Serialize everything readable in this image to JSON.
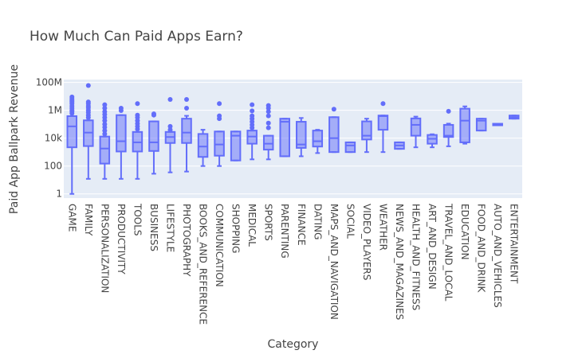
{
  "chart_data": {
    "type": "box",
    "title": "How Much Can Paid Apps Earn?",
    "xlabel": "Category",
    "ylabel": "Paid App Ballpark Revenue",
    "yscale": "log",
    "ylim": [
      0.5,
      160000000
    ],
    "yticks": [
      {
        "value": 1,
        "label": "1"
      },
      {
        "value": 100,
        "label": "100"
      },
      {
        "value": 10000,
        "label": "10k"
      },
      {
        "value": 1000000,
        "label": "1M"
      },
      {
        "value": 100000000,
        "label": "100M"
      }
    ],
    "color": "#636efa",
    "background": "#e5ecf6",
    "categories": [
      {
        "name": "GAME",
        "min": 1,
        "q1": 2200,
        "median": 70000,
        "q3": 380000,
        "max": 380000,
        "outliers": [
          600000,
          800000,
          1000000,
          1400000,
          2000000,
          3000000,
          4000000,
          5000000,
          6500000,
          9000000
        ]
      },
      {
        "name": "FAMILY",
        "min": 12,
        "q1": 2700,
        "median": 25000,
        "q3": 190000,
        "max": 190000,
        "outliers": [
          300000,
          450000,
          700000,
          1000000,
          1500000,
          2000000,
          3000000,
          4000000,
          60000000
        ]
      },
      {
        "name": "PERSONALIZATION",
        "min": 12,
        "q1": 150,
        "median": 1800,
        "q3": 13000,
        "max": 13000,
        "outliers": [
          20000,
          35000,
          60000,
          100000,
          180000,
          300000,
          500000,
          800000,
          1400000,
          2500000
        ]
      },
      {
        "name": "PRODUCTIVITY",
        "min": 12,
        "q1": 1100,
        "median": 6000,
        "q3": 450000,
        "max": 450000,
        "outliers": [
          950000,
          1400000
        ]
      },
      {
        "name": "TOOLS",
        "min": 12,
        "q1": 1100,
        "median": 5000,
        "q3": 28000,
        "max": 28000,
        "outliers": [
          45000,
          70000,
          110000,
          180000,
          300000,
          450000,
          3000000
        ]
      },
      {
        "name": "BUSINESS",
        "min": 28,
        "q1": 1200,
        "median": 5000,
        "q3": 160000,
        "max": 160000,
        "outliers": [
          450000,
          550000
        ]
      },
      {
        "name": "LIFESTYLE",
        "min": 35,
        "q1": 4500,
        "median": 12000,
        "q3": 28000,
        "max": 28000,
        "outliers": [
          40000,
          70000,
          6000000
        ]
      },
      {
        "name": "PHOTOGRAPHY",
        "min": 40,
        "q1": 4500,
        "median": 25000,
        "q3": 250000,
        "max": 400000,
        "outliers": [
          1400000,
          6000000
        ]
      },
      {
        "name": "BOOKS_AND_REFERENCE",
        "min": 100,
        "q1": 450,
        "median": 2500,
        "q3": 20000,
        "max": 40000,
        "outliers": []
      },
      {
        "name": "COMMUNICATION",
        "min": 100,
        "q1": 550,
        "median": 3500,
        "q3": 30000,
        "max": 30000,
        "outliers": [
          250000,
          400000,
          3000000
        ]
      },
      {
        "name": "SHOPPING",
        "min": 250,
        "q1": 250,
        "median": 15000,
        "q3": 30000,
        "max": 30000,
        "outliers": []
      },
      {
        "name": "MEDICAL",
        "min": 300,
        "q1": 4000,
        "median": 13000,
        "q3": 35000,
        "max": 35000,
        "outliers": [
          55000,
          90000,
          150000,
          250000,
          400000,
          900000,
          2500000
        ]
      },
      {
        "name": "SPORTS",
        "min": 300,
        "q1": 1500,
        "median": 4000,
        "q3": 15000,
        "max": 15000,
        "outliers": [
          55000,
          120000,
          400000,
          800000,
          1400000,
          2200000
        ]
      },
      {
        "name": "PARENTING",
        "min": 500,
        "q1": 500,
        "median": 150000,
        "q3": 250000,
        "max": 250000,
        "outliers": []
      },
      {
        "name": "FINANCE",
        "min": 500,
        "q1": 2000,
        "median": 3500,
        "q3": 150000,
        "max": 280000,
        "outliers": []
      },
      {
        "name": "DATING",
        "min": 850,
        "q1": 2500,
        "median": 6000,
        "q3": 35000,
        "max": 40000,
        "outliers": []
      },
      {
        "name": "MAPS_AND_NAVIGATION",
        "min": 1000,
        "q1": 1000,
        "median": 10000,
        "q3": 320000,
        "max": 320000,
        "outliers": [
          1200000
        ]
      },
      {
        "name": "SOCIAL",
        "min": 1000,
        "q1": 1000,
        "median": 3000,
        "q3": 5000,
        "max": 5000,
        "outliers": []
      },
      {
        "name": "VIDEO_PLAYERS",
        "min": 1000,
        "q1": 8000,
        "median": 15000,
        "q3": 160000,
        "max": 250000,
        "outliers": []
      },
      {
        "name": "WEATHER",
        "min": 1000,
        "q1": 40000,
        "median": 380000,
        "q3": 420000,
        "max": 420000,
        "outliers": [
          3000000
        ]
      },
      {
        "name": "NEWS_AND_MAGAZINES",
        "min": 1700,
        "q1": 1700,
        "median": 3000,
        "q3": 5000,
        "max": 5000,
        "outliers": []
      },
      {
        "name": "HEALTH_AND_FITNESS",
        "min": 2200,
        "q1": 15000,
        "median": 90000,
        "q3": 260000,
        "max": 350000,
        "outliers": []
      },
      {
        "name": "ART_AND_DESIGN",
        "min": 2200,
        "q1": 4000,
        "median": 9000,
        "q3": 17000,
        "max": 19000,
        "outliers": []
      },
      {
        "name": "TRAVEL_AND_LOCAL",
        "min": 2600,
        "q1": 12000,
        "median": 15000,
        "q3": 90000,
        "max": 110000,
        "outliers": [
          850000
        ]
      },
      {
        "name": "EDUCATION",
        "min": 4000,
        "q1": 5000,
        "median": 180000,
        "q3": 1300000,
        "max": 1900000,
        "outliers": []
      },
      {
        "name": "FOOD_AND_DRINK",
        "min": 35000,
        "q1": 35000,
        "median": 180000,
        "q3": 250000,
        "max": 250000,
        "outliers": []
      },
      {
        "name": "AUTO_AND_VEHICLES",
        "min": 95000,
        "q1": 95000,
        "median": 95000,
        "q3": 95000,
        "max": 95000,
        "outliers": []
      },
      {
        "name": "ENTERTAINMENT",
        "min": 250000,
        "q1": 250000,
        "median": 320000,
        "q3": 420000,
        "max": 420000,
        "outliers": []
      }
    ]
  }
}
